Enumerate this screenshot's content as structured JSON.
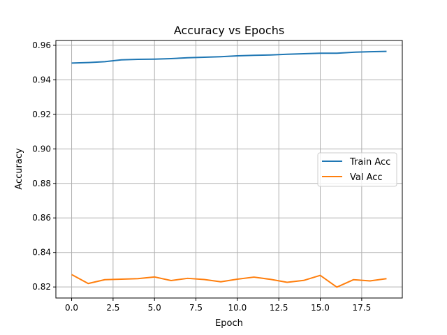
{
  "chart_data": {
    "type": "line",
    "title": "Accuracy vs Epochs",
    "xlabel": "Epoch",
    "ylabel": "Accuracy",
    "xlim": [
      -0.95,
      19.95
    ],
    "ylim": [
      0.8136,
      0.9628
    ],
    "x_ticks": [
      0.0,
      2.5,
      5.0,
      7.5,
      10.0,
      12.5,
      15.0,
      17.5
    ],
    "x_tick_labels": [
      "0.0",
      "2.5",
      "5.0",
      "7.5",
      "10.0",
      "12.5",
      "15.0",
      "17.5"
    ],
    "y_ticks": [
      0.82,
      0.84,
      0.86,
      0.88,
      0.9,
      0.92,
      0.94,
      0.96
    ],
    "y_tick_labels": [
      "0.82",
      "0.84",
      "0.86",
      "0.88",
      "0.90",
      "0.92",
      "0.94",
      "0.96"
    ],
    "grid": true,
    "legend_position": "center-right",
    "x": [
      0,
      1,
      2,
      3,
      4,
      5,
      6,
      7,
      8,
      9,
      10,
      11,
      12,
      13,
      14,
      15,
      16,
      17,
      18,
      19
    ],
    "series": [
      {
        "name": "Train Acc",
        "color": "#1f77b4",
        "values": [
          0.9497,
          0.95,
          0.9505,
          0.9516,
          0.9519,
          0.952,
          0.9523,
          0.9528,
          0.9531,
          0.9534,
          0.9539,
          0.9542,
          0.9544,
          0.9548,
          0.9551,
          0.9554,
          0.9554,
          0.956,
          0.9563,
          0.9565
        ]
      },
      {
        "name": "Val Acc",
        "color": "#ff7f0e",
        "values": [
          0.8272,
          0.822,
          0.8242,
          0.8245,
          0.8248,
          0.8258,
          0.8237,
          0.825,
          0.8243,
          0.823,
          0.8245,
          0.8257,
          0.8244,
          0.8227,
          0.8238,
          0.8267,
          0.8199,
          0.8242,
          0.8235,
          0.8248
        ]
      }
    ]
  }
}
